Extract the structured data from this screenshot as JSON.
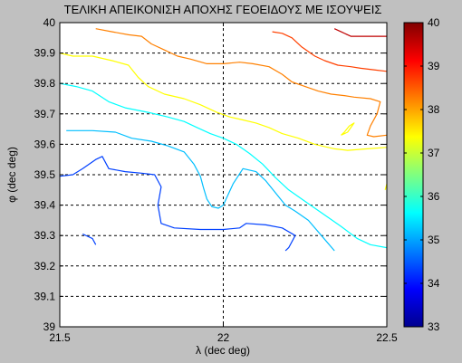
{
  "chart_data": {
    "type": "contour",
    "title": "ΤΕΛΙΚΗ ΑΠΕΙΚΟΝΙΣΗ ΑΠΟΧΗΣ ΓΕΟΕΙΔΟΥΣ ΜΕ ΙΣΟΥΨΕΙΣ",
    "xlabel": "λ (dec deg)",
    "ylabel": "φ (dec deg)",
    "xlim": [
      21.5,
      22.5
    ],
    "ylim": [
      39,
      40
    ],
    "xticks": [
      "21.5",
      "22",
      "22.5"
    ],
    "yticks": [
      "39",
      "39.1",
      "39.2",
      "39.3",
      "39.4",
      "39.5",
      "39.6",
      "39.7",
      "39.8",
      "39.9",
      "40"
    ],
    "grid": "dashed",
    "colorbar": {
      "range": [
        33,
        40
      ],
      "ticks": [
        "33",
        "34",
        "35",
        "36",
        "37",
        "38",
        "39",
        "40"
      ],
      "colormap": "jet"
    },
    "series": [
      {
        "level": 39,
        "color": "#bf0000",
        "segments": [
          [
            [
              22.34,
              39.98
            ],
            [
              22.36,
              39.97
            ],
            [
              22.39,
              39.955
            ],
            [
              22.43,
              39.955
            ],
            [
              22.47,
              39.955
            ],
            [
              22.5,
              39.955
            ]
          ]
        ]
      },
      {
        "level": 38.5,
        "color": "#ff4000",
        "segments": [
          [
            [
              22.15,
              39.97
            ],
            [
              22.18,
              39.965
            ],
            [
              22.21,
              39.95
            ],
            [
              22.24,
              39.92
            ],
            [
              22.28,
              39.89
            ],
            [
              22.31,
              39.875
            ],
            [
              22.35,
              39.86
            ],
            [
              22.39,
              39.855
            ],
            [
              22.42,
              39.85
            ],
            [
              22.46,
              39.845
            ],
            [
              22.5,
              39.84
            ]
          ]
        ]
      },
      {
        "level": 38,
        "color": "#ff8000",
        "segments": [
          [
            [
              21.61,
              39.98
            ],
            [
              21.66,
              39.97
            ],
            [
              21.71,
              39.96
            ],
            [
              21.75,
              39.955
            ],
            [
              21.78,
              39.93
            ],
            [
              21.82,
              39.91
            ],
            [
              21.86,
              39.89
            ],
            [
              21.9,
              39.88
            ],
            [
              21.95,
              39.865
            ],
            [
              22.0,
              39.865
            ],
            [
              22.05,
              39.87
            ],
            [
              22.09,
              39.865
            ],
            [
              22.14,
              39.855
            ],
            [
              22.18,
              39.83
            ],
            [
              22.21,
              39.805
            ],
            [
              22.25,
              39.79
            ],
            [
              22.29,
              39.775
            ],
            [
              22.33,
              39.765
            ],
            [
              22.37,
              39.76
            ],
            [
              22.4,
              39.755
            ],
            [
              22.45,
              39.75
            ],
            [
              22.48,
              39.74
            ],
            [
              22.47,
              39.7
            ],
            [
              22.45,
              39.66
            ],
            [
              22.44,
              39.63
            ],
            [
              22.46,
              39.625
            ],
            [
              22.5,
              39.63
            ]
          ]
        ]
      },
      {
        "level": 37,
        "color": "#ffff00",
        "segments": [
          [
            [
              21.5,
              39.9
            ],
            [
              21.54,
              39.89
            ],
            [
              21.6,
              39.89
            ],
            [
              21.66,
              39.875
            ],
            [
              21.71,
              39.86
            ],
            [
              21.74,
              39.82
            ],
            [
              21.77,
              39.79
            ],
            [
              21.82,
              39.765
            ],
            [
              21.88,
              39.75
            ],
            [
              21.93,
              39.73
            ],
            [
              21.98,
              39.705
            ],
            [
              22.02,
              39.69
            ],
            [
              22.06,
              39.68
            ],
            [
              22.1,
              39.67
            ],
            [
              22.14,
              39.655
            ],
            [
              22.18,
              39.635
            ],
            [
              22.23,
              39.62
            ],
            [
              22.28,
              39.6
            ],
            [
              22.34,
              39.585
            ],
            [
              22.38,
              39.58
            ],
            [
              22.44,
              39.585
            ],
            [
              22.5,
              39.59
            ]
          ],
          [
            [
              22.36,
              39.63
            ],
            [
              22.38,
              39.64
            ],
            [
              22.4,
              39.67
            ],
            [
              22.385,
              39.66
            ],
            [
              22.37,
              39.64
            ],
            [
              22.36,
              39.63
            ]
          ],
          [
            [
              22.495,
              39.45
            ],
            [
              22.5,
              39.47
            ]
          ]
        ]
      },
      {
        "level": 36,
        "color": "#00ffff",
        "segments": [
          [
            [
              21.5,
              39.8
            ],
            [
              21.55,
              39.79
            ],
            [
              21.6,
              39.775
            ],
            [
              21.65,
              39.74
            ],
            [
              21.7,
              39.72
            ],
            [
              21.77,
              39.705
            ],
            [
              21.83,
              39.69
            ],
            [
              21.88,
              39.675
            ],
            [
              21.92,
              39.655
            ],
            [
              21.96,
              39.635
            ],
            [
              22.0,
              39.62
            ],
            [
              22.04,
              39.6
            ],
            [
              22.08,
              39.57
            ],
            [
              22.12,
              39.535
            ],
            [
              22.16,
              39.49
            ],
            [
              22.2,
              39.45
            ],
            [
              22.24,
              39.42
            ],
            [
              22.28,
              39.39
            ],
            [
              22.32,
              39.36
            ],
            [
              22.36,
              39.33
            ],
            [
              22.41,
              39.29
            ],
            [
              22.45,
              39.27
            ],
            [
              22.5,
              39.26
            ]
          ]
        ]
      },
      {
        "level": 35,
        "color": "#00bfff",
        "segments": [
          [
            [
              21.52,
              39.645
            ],
            [
              21.6,
              39.645
            ],
            [
              21.67,
              39.64
            ],
            [
              21.72,
              39.62
            ],
            [
              21.78,
              39.61
            ],
            [
              21.83,
              39.595
            ],
            [
              21.88,
              39.575
            ],
            [
              21.91,
              39.535
            ],
            [
              21.93,
              39.495
            ],
            [
              21.94,
              39.455
            ],
            [
              21.95,
              39.42
            ],
            [
              21.965,
              39.395
            ],
            [
              21.985,
              39.39
            ],
            [
              22.0,
              39.4
            ],
            [
              22.03,
              39.47
            ],
            [
              22.06,
              39.52
            ],
            [
              22.1,
              39.51
            ],
            [
              22.13,
              39.48
            ],
            [
              22.16,
              39.44
            ],
            [
              22.19,
              39.4
            ],
            [
              22.22,
              39.38
            ],
            [
              22.26,
              39.35
            ],
            [
              22.3,
              39.3
            ],
            [
              22.34,
              39.25
            ]
          ]
        ]
      },
      {
        "level": 34,
        "color": "#0040ff",
        "segments": [
          [
            [
              21.5,
              39.495
            ],
            [
              21.54,
              39.5
            ],
            [
              21.57,
              39.52
            ],
            [
              21.61,
              39.55
            ],
            [
              21.63,
              39.56
            ],
            [
              21.65,
              39.52
            ],
            [
              21.7,
              39.51
            ],
            [
              21.75,
              39.505
            ],
            [
              21.79,
              39.5
            ],
            [
              21.81,
              39.46
            ],
            [
              21.8,
              39.4
            ],
            [
              21.81,
              39.34
            ],
            [
              21.85,
              39.325
            ],
            [
              21.93,
              39.32
            ],
            [
              22.0,
              39.32
            ],
            [
              22.05,
              39.325
            ],
            [
              22.07,
              39.34
            ],
            [
              22.13,
              39.335
            ],
            [
              22.18,
              39.325
            ],
            [
              22.22,
              39.3
            ],
            [
              22.2,
              39.26
            ],
            [
              22.19,
              39.25
            ]
          ],
          [
            [
              21.57,
              39.305
            ],
            [
              21.6,
              39.29
            ],
            [
              21.61,
              39.27
            ]
          ]
        ]
      }
    ]
  }
}
